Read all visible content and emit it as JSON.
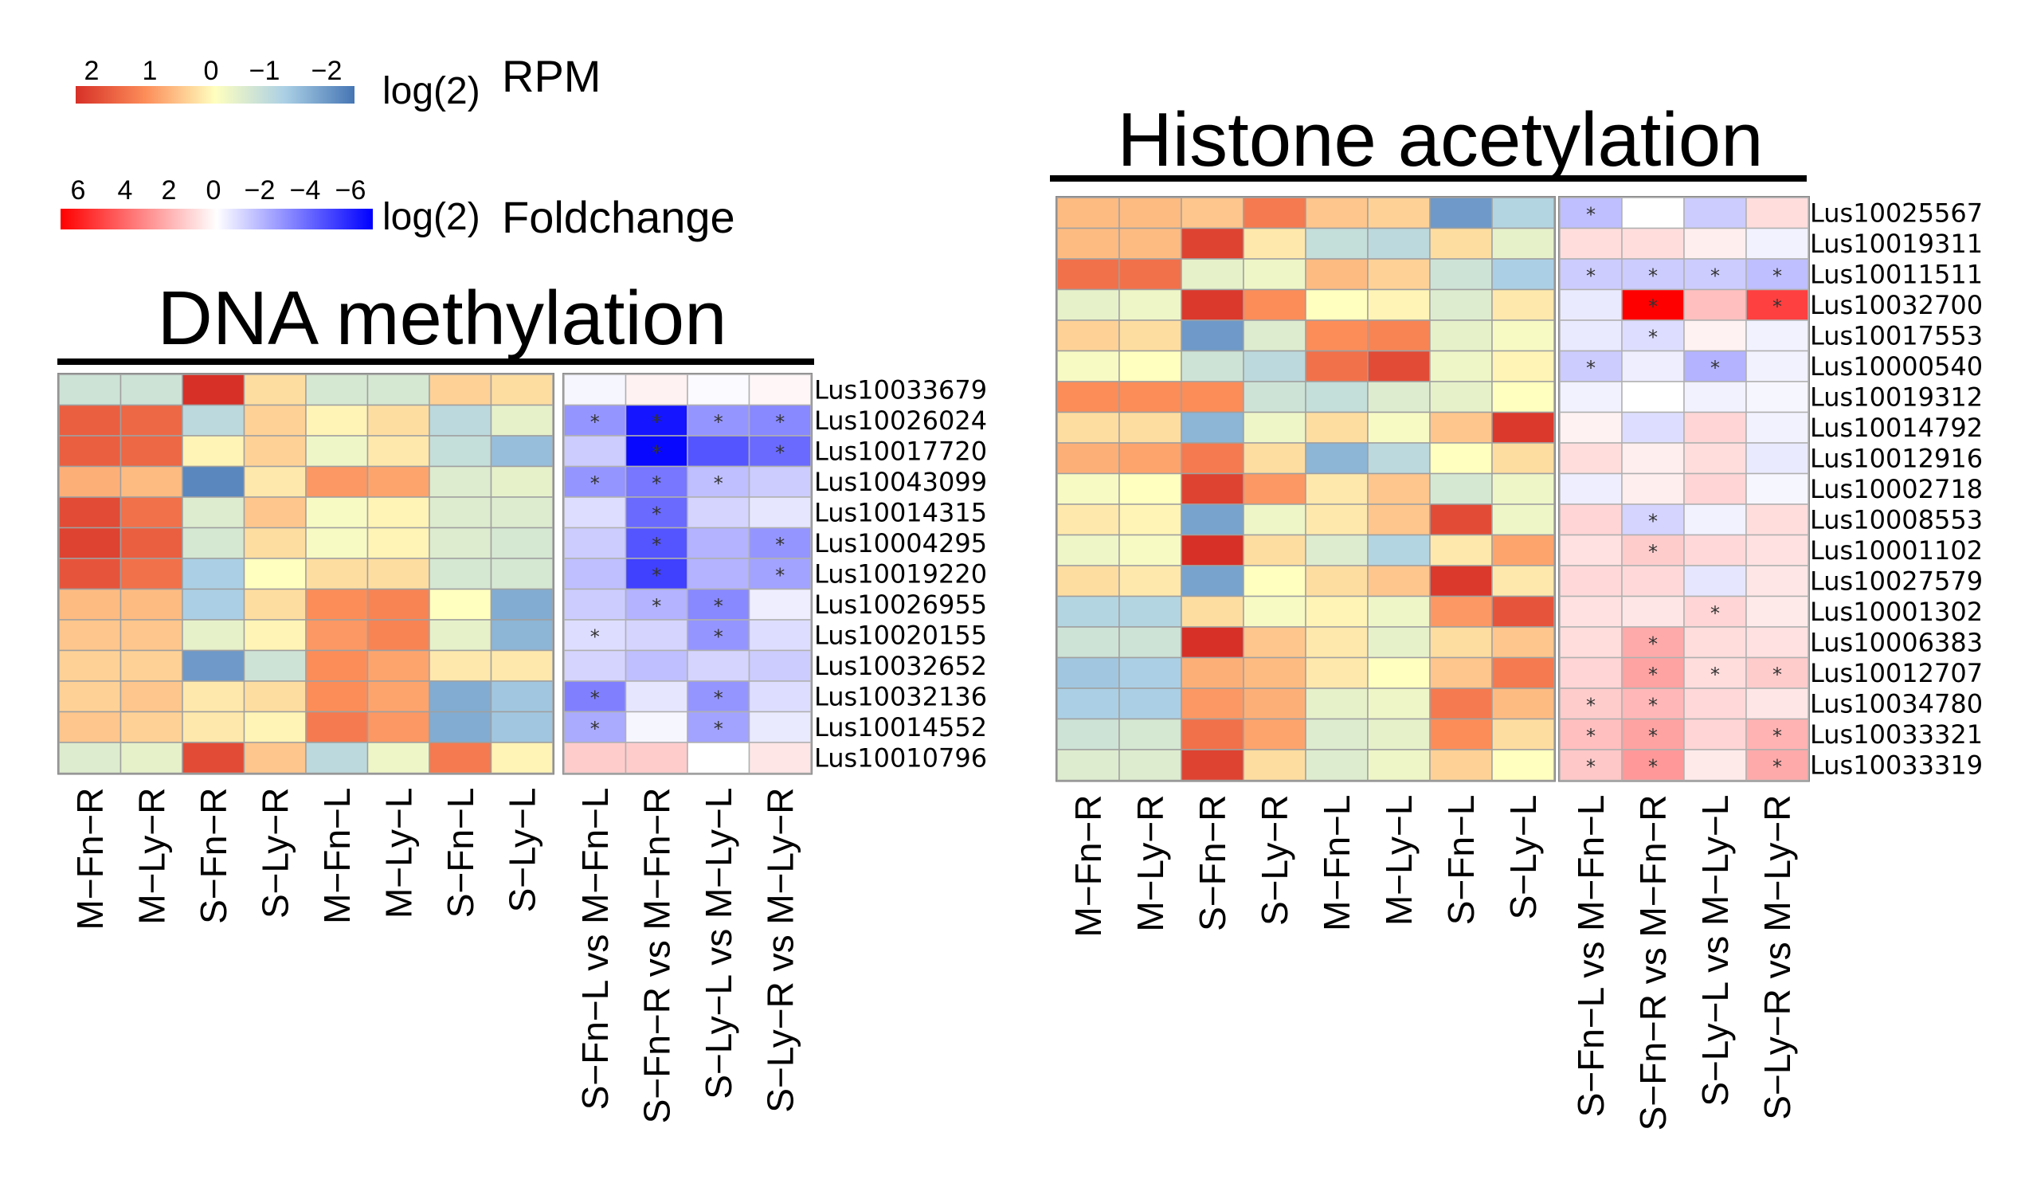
{
  "legend": {
    "rpm_ticks": [
      "2",
      "1",
      "0",
      "−1",
      "−2"
    ],
    "rpm_unit_prefix": "log(2)",
    "rpm_unit": "RPM",
    "rpm_range": [
      2,
      -2
    ],
    "fc_ticks": [
      "6",
      "4",
      "2",
      "0",
      "−2",
      "−4",
      "−6"
    ],
    "fc_unit_prefix": "log(2)",
    "fc_unit": "Foldchange",
    "fc_range": [
      6,
      -6
    ]
  },
  "chart_data": [
    {
      "type": "heatmap",
      "title": "DNA methylation",
      "genes": [
        "Lus10033679",
        "Lus10026024",
        "Lus10017720",
        "Lus10043099",
        "Lus10014315",
        "Lus10004295",
        "Lus10019220",
        "Lus10026955",
        "Lus10020155",
        "Lus10032652",
        "Lus10032136",
        "Lus10014552",
        "Lus10010796"
      ],
      "rpm_columns": [
        "M−Fn−R",
        "M−Ly−R",
        "S−Fn−R",
        "S−Ly−R",
        "M−Fn−L",
        "M−Ly−L",
        "S−Fn−L",
        "S−Ly−L"
      ],
      "rpm_values": [
        [
          -0.6,
          -0.6,
          2.0,
          0.3,
          -0.5,
          -0.5,
          0.4,
          0.3
        ],
        [
          1.5,
          1.4,
          -0.8,
          0.4,
          0.1,
          0.3,
          -0.8,
          -0.3
        ],
        [
          1.5,
          1.4,
          0.1,
          0.4,
          -0.2,
          0.2,
          -0.7,
          -1.2
        ],
        [
          0.7,
          0.6,
          -1.8,
          0.2,
          0.9,
          0.8,
          -0.4,
          -0.3
        ],
        [
          1.7,
          1.3,
          -0.4,
          0.5,
          -0.1,
          0.1,
          -0.4,
          -0.4
        ],
        [
          1.8,
          1.5,
          -0.5,
          0.3,
          -0.1,
          0.1,
          -0.4,
          -0.5
        ],
        [
          1.6,
          1.3,
          -1.0,
          0.0,
          0.3,
          0.3,
          -0.5,
          -0.5
        ],
        [
          0.6,
          0.6,
          -1.0,
          0.3,
          1.0,
          1.1,
          0.0,
          -1.4
        ],
        [
          0.5,
          0.5,
          -0.3,
          0.1,
          0.9,
          1.1,
          -0.3,
          -1.3
        ],
        [
          0.4,
          0.4,
          -1.6,
          -0.6,
          1.0,
          0.8,
          0.2,
          0.2
        ],
        [
          0.4,
          0.5,
          0.2,
          0.3,
          1.0,
          0.8,
          -1.4,
          -1.1
        ],
        [
          0.5,
          0.4,
          0.2,
          0.1,
          1.2,
          0.9,
          -1.4,
          -1.1
        ],
        [
          -0.4,
          -0.3,
          1.7,
          0.5,
          -0.8,
          -0.2,
          1.2,
          0.1
        ]
      ],
      "fc_columns": [
        "S−Fn−L vs M−Fn−L",
        "S−Fn−R vs M−Fn−R",
        "S−Ly−L vs M−Ly−L",
        "S−Ly−R vs M−Ly−R"
      ],
      "fc_values": [
        [
          -0.2,
          0.3,
          -0.1,
          0.2
        ],
        [
          -2.5,
          -5.5,
          -2.5,
          -2.8
        ],
        [
          -1.2,
          -5.8,
          -4.0,
          -3.5
        ],
        [
          -2.5,
          -3.2,
          -1.5,
          -1.2
        ],
        [
          -0.8,
          -3.5,
          -1.0,
          -0.6
        ],
        [
          -1.2,
          -4.0,
          -1.8,
          -2.5
        ],
        [
          -1.5,
          -4.5,
          -1.8,
          -2.2
        ],
        [
          -1.2,
          -1.8,
          -2.8,
          -0.4
        ],
        [
          -0.8,
          -1.0,
          -2.5,
          -0.8
        ],
        [
          -1.0,
          -1.5,
          -1.0,
          -1.2
        ],
        [
          -3.0,
          -0.6,
          -2.5,
          -0.8
        ],
        [
          -2.0,
          -0.2,
          -2.2,
          -0.5
        ],
        [
          1.2,
          1.2,
          0.0,
          0.6
        ]
      ],
      "significant": [
        [
          0,
          0,
          0,
          0
        ],
        [
          1,
          1,
          1,
          1
        ],
        [
          0,
          1,
          0,
          1
        ],
        [
          1,
          1,
          1,
          0
        ],
        [
          0,
          1,
          0,
          0
        ],
        [
          0,
          1,
          0,
          1
        ],
        [
          0,
          1,
          0,
          1
        ],
        [
          0,
          1,
          1,
          0
        ],
        [
          1,
          0,
          1,
          0
        ],
        [
          0,
          0,
          0,
          0
        ],
        [
          1,
          0,
          1,
          0
        ],
        [
          1,
          0,
          1,
          0
        ],
        [
          0,
          0,
          0,
          0
        ]
      ]
    },
    {
      "type": "heatmap",
      "title": "Histone acetylation",
      "genes": [
        "Lus10025567",
        "Lus10019311",
        "Lus10011511",
        "Lus10032700",
        "Lus10017553",
        "Lus10000540",
        "Lus10019312",
        "Lus10014792",
        "Lus10012916",
        "Lus10002718",
        "Lus10008553",
        "Lus10001102",
        "Lus10027579",
        "Lus10001302",
        "Lus10006383",
        "Lus10012707",
        "Lus10034780",
        "Lus10033321",
        "Lus10033319"
      ],
      "rpm_columns": [
        "M−Fn−R",
        "M−Ly−R",
        "S−Fn−R",
        "S−Ly−R",
        "M−Fn−L",
        "M−Ly−L",
        "S−Fn−L",
        "S−Ly−L"
      ],
      "rpm_values": [
        [
          0.6,
          0.6,
          0.5,
          1.2,
          0.5,
          0.4,
          -1.6,
          -0.9
        ],
        [
          0.6,
          0.6,
          1.8,
          0.2,
          -0.7,
          -0.8,
          0.3,
          -0.3
        ],
        [
          1.3,
          1.3,
          -0.3,
          -0.2,
          0.6,
          0.4,
          -0.6,
          -1.0
        ],
        [
          -0.3,
          -0.2,
          1.9,
          1.0,
          0.0,
          0.1,
          -0.4,
          0.2
        ],
        [
          0.4,
          0.3,
          -1.6,
          -0.4,
          1.0,
          1.1,
          -0.3,
          -0.1
        ],
        [
          -0.1,
          0.0,
          -0.6,
          -0.8,
          1.3,
          1.7,
          -0.2,
          0.1
        ],
        [
          1.0,
          1.0,
          1.0,
          -0.6,
          -0.7,
          -0.4,
          -0.3,
          0.0
        ],
        [
          0.3,
          0.3,
          -1.3,
          -0.2,
          0.3,
          -0.1,
          0.5,
          1.9
        ],
        [
          0.7,
          0.8,
          1.2,
          0.3,
          -1.3,
          -0.8,
          0.0,
          0.3
        ],
        [
          -0.1,
          0.0,
          1.8,
          0.9,
          0.2,
          0.5,
          -0.5,
          -0.2
        ],
        [
          0.2,
          0.1,
          -1.5,
          -0.2,
          0.2,
          0.5,
          1.7,
          -0.2
        ],
        [
          -0.2,
          -0.1,
          2.0,
          0.3,
          -0.4,
          -0.9,
          0.2,
          0.8
        ],
        [
          0.3,
          0.2,
          -1.5,
          0.0,
          0.3,
          0.5,
          1.9,
          0.2
        ],
        [
          -0.9,
          -0.9,
          0.3,
          -0.1,
          0.1,
          -0.2,
          0.9,
          1.6
        ],
        [
          -0.6,
          -0.6,
          2.2,
          0.5,
          0.2,
          -0.3,
          0.3,
          0.5
        ],
        [
          -1.1,
          -1.0,
          0.7,
          0.6,
          0.2,
          0.0,
          0.5,
          1.2
        ],
        [
          -1.0,
          -1.0,
          0.9,
          0.7,
          -0.3,
          -0.2,
          1.2,
          0.6
        ],
        [
          -0.6,
          -0.5,
          1.3,
          0.8,
          -0.4,
          -0.3,
          1.0,
          0.3
        ],
        [
          -0.4,
          -0.4,
          1.8,
          0.3,
          -0.4,
          -0.2,
          0.4,
          0.0
        ]
      ],
      "fc_columns": [
        "S−Fn−L vs M−Fn−L",
        "S−Fn−R vs M−Fn−R",
        "S−Ly−L vs M−Ly−L",
        "S−Ly−R vs M−Ly−R"
      ],
      "fc_values": [
        [
          -1.5,
          0.0,
          -1.2,
          0.8
        ],
        [
          0.8,
          0.8,
          0.4,
          -0.3
        ],
        [
          -1.2,
          -1.2,
          -1.2,
          -1.5
        ],
        [
          -0.5,
          6.0,
          1.5,
          4.5
        ],
        [
          -0.5,
          -0.8,
          0.3,
          -0.3
        ],
        [
          -1.2,
          -0.4,
          -1.8,
          -0.3
        ],
        [
          -0.3,
          0.0,
          -0.3,
          -0.2
        ],
        [
          0.3,
          -0.8,
          1.0,
          -0.3
        ],
        [
          0.8,
          0.4,
          0.8,
          -0.5
        ],
        [
          -0.4,
          0.4,
          1.0,
          -0.2
        ],
        [
          1.0,
          -1.0,
          -0.3,
          0.8
        ],
        [
          0.7,
          1.2,
          0.9,
          0.7
        ],
        [
          0.9,
          0.9,
          -0.6,
          0.6
        ],
        [
          0.7,
          0.6,
          1.0,
          0.5
        ],
        [
          0.8,
          2.0,
          0.8,
          0.7
        ],
        [
          1.0,
          2.2,
          0.8,
          1.2
        ],
        [
          1.2,
          1.7,
          0.9,
          0.6
        ],
        [
          1.5,
          2.2,
          1.0,
          1.8
        ],
        [
          1.3,
          2.4,
          0.5,
          2.0
        ]
      ],
      "significant": [
        [
          1,
          0,
          0,
          0
        ],
        [
          0,
          0,
          0,
          0
        ],
        [
          1,
          1,
          1,
          1
        ],
        [
          0,
          1,
          0,
          1
        ],
        [
          0,
          1,
          0,
          0
        ],
        [
          1,
          0,
          1,
          0
        ],
        [
          0,
          0,
          0,
          0
        ],
        [
          0,
          0,
          0,
          0
        ],
        [
          0,
          0,
          0,
          0
        ],
        [
          0,
          0,
          0,
          0
        ],
        [
          0,
          1,
          0,
          0
        ],
        [
          0,
          1,
          0,
          0
        ],
        [
          0,
          0,
          0,
          0
        ],
        [
          0,
          0,
          1,
          0
        ],
        [
          0,
          1,
          0,
          0
        ],
        [
          0,
          1,
          1,
          1
        ],
        [
          1,
          1,
          0,
          0
        ],
        [
          1,
          1,
          0,
          1
        ],
        [
          1,
          1,
          0,
          1
        ]
      ]
    }
  ]
}
